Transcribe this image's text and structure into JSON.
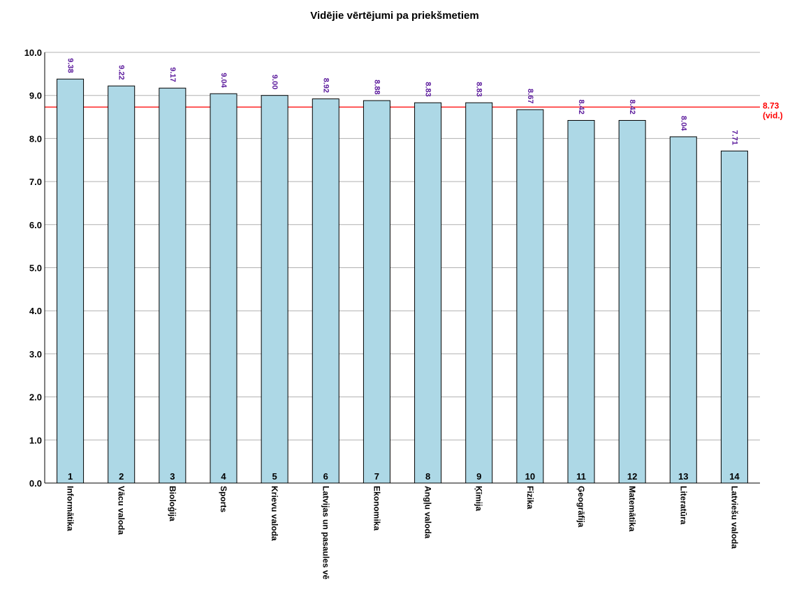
{
  "chart_data": {
    "type": "bar",
    "title": "Vidējie vērtējumi pa priekšmetiem",
    "categories": [
      "Informātika",
      "Vācu valoda",
      "Bioloģija",
      "Sports",
      "Krievu valoda",
      "Latvijas un pasaules vē",
      "Ekonomika",
      "Angļu valoda",
      "Ķīmija",
      "Fizika",
      "Ģeogrāfija",
      "Matemātika",
      "Literatūra",
      "Latviešu valoda"
    ],
    "ranks": [
      "1",
      "2",
      "3",
      "4",
      "5",
      "6",
      "7",
      "8",
      "9",
      "10",
      "11",
      "12",
      "13",
      "14"
    ],
    "values": [
      9.38,
      9.22,
      9.17,
      9.04,
      9.0,
      8.92,
      8.88,
      8.83,
      8.83,
      8.67,
      8.42,
      8.42,
      8.04,
      7.71
    ],
    "value_labels": [
      "9.38",
      "9.22",
      "9.17",
      "9.04",
      "9.00",
      "8.92",
      "8.88",
      "8.83",
      "8.83",
      "8.67",
      "8.42",
      "8.42",
      "8.04",
      "7.71"
    ],
    "ylim": [
      0,
      10
    ],
    "yticks": [
      "0.0",
      "1.0",
      "2.0",
      "3.0",
      "4.0",
      "5.0",
      "6.0",
      "7.0",
      "8.0",
      "9.0",
      "10.0"
    ],
    "grid": true,
    "average": {
      "value": 8.73,
      "label": "8.73",
      "sublabel": "(vid.)"
    },
    "colors": {
      "bar": "#add8e6",
      "bar_stroke": "#000000",
      "average_line": "#ff0000",
      "value_label": "#5b1a9c",
      "grid": "#b0b0b0"
    }
  }
}
